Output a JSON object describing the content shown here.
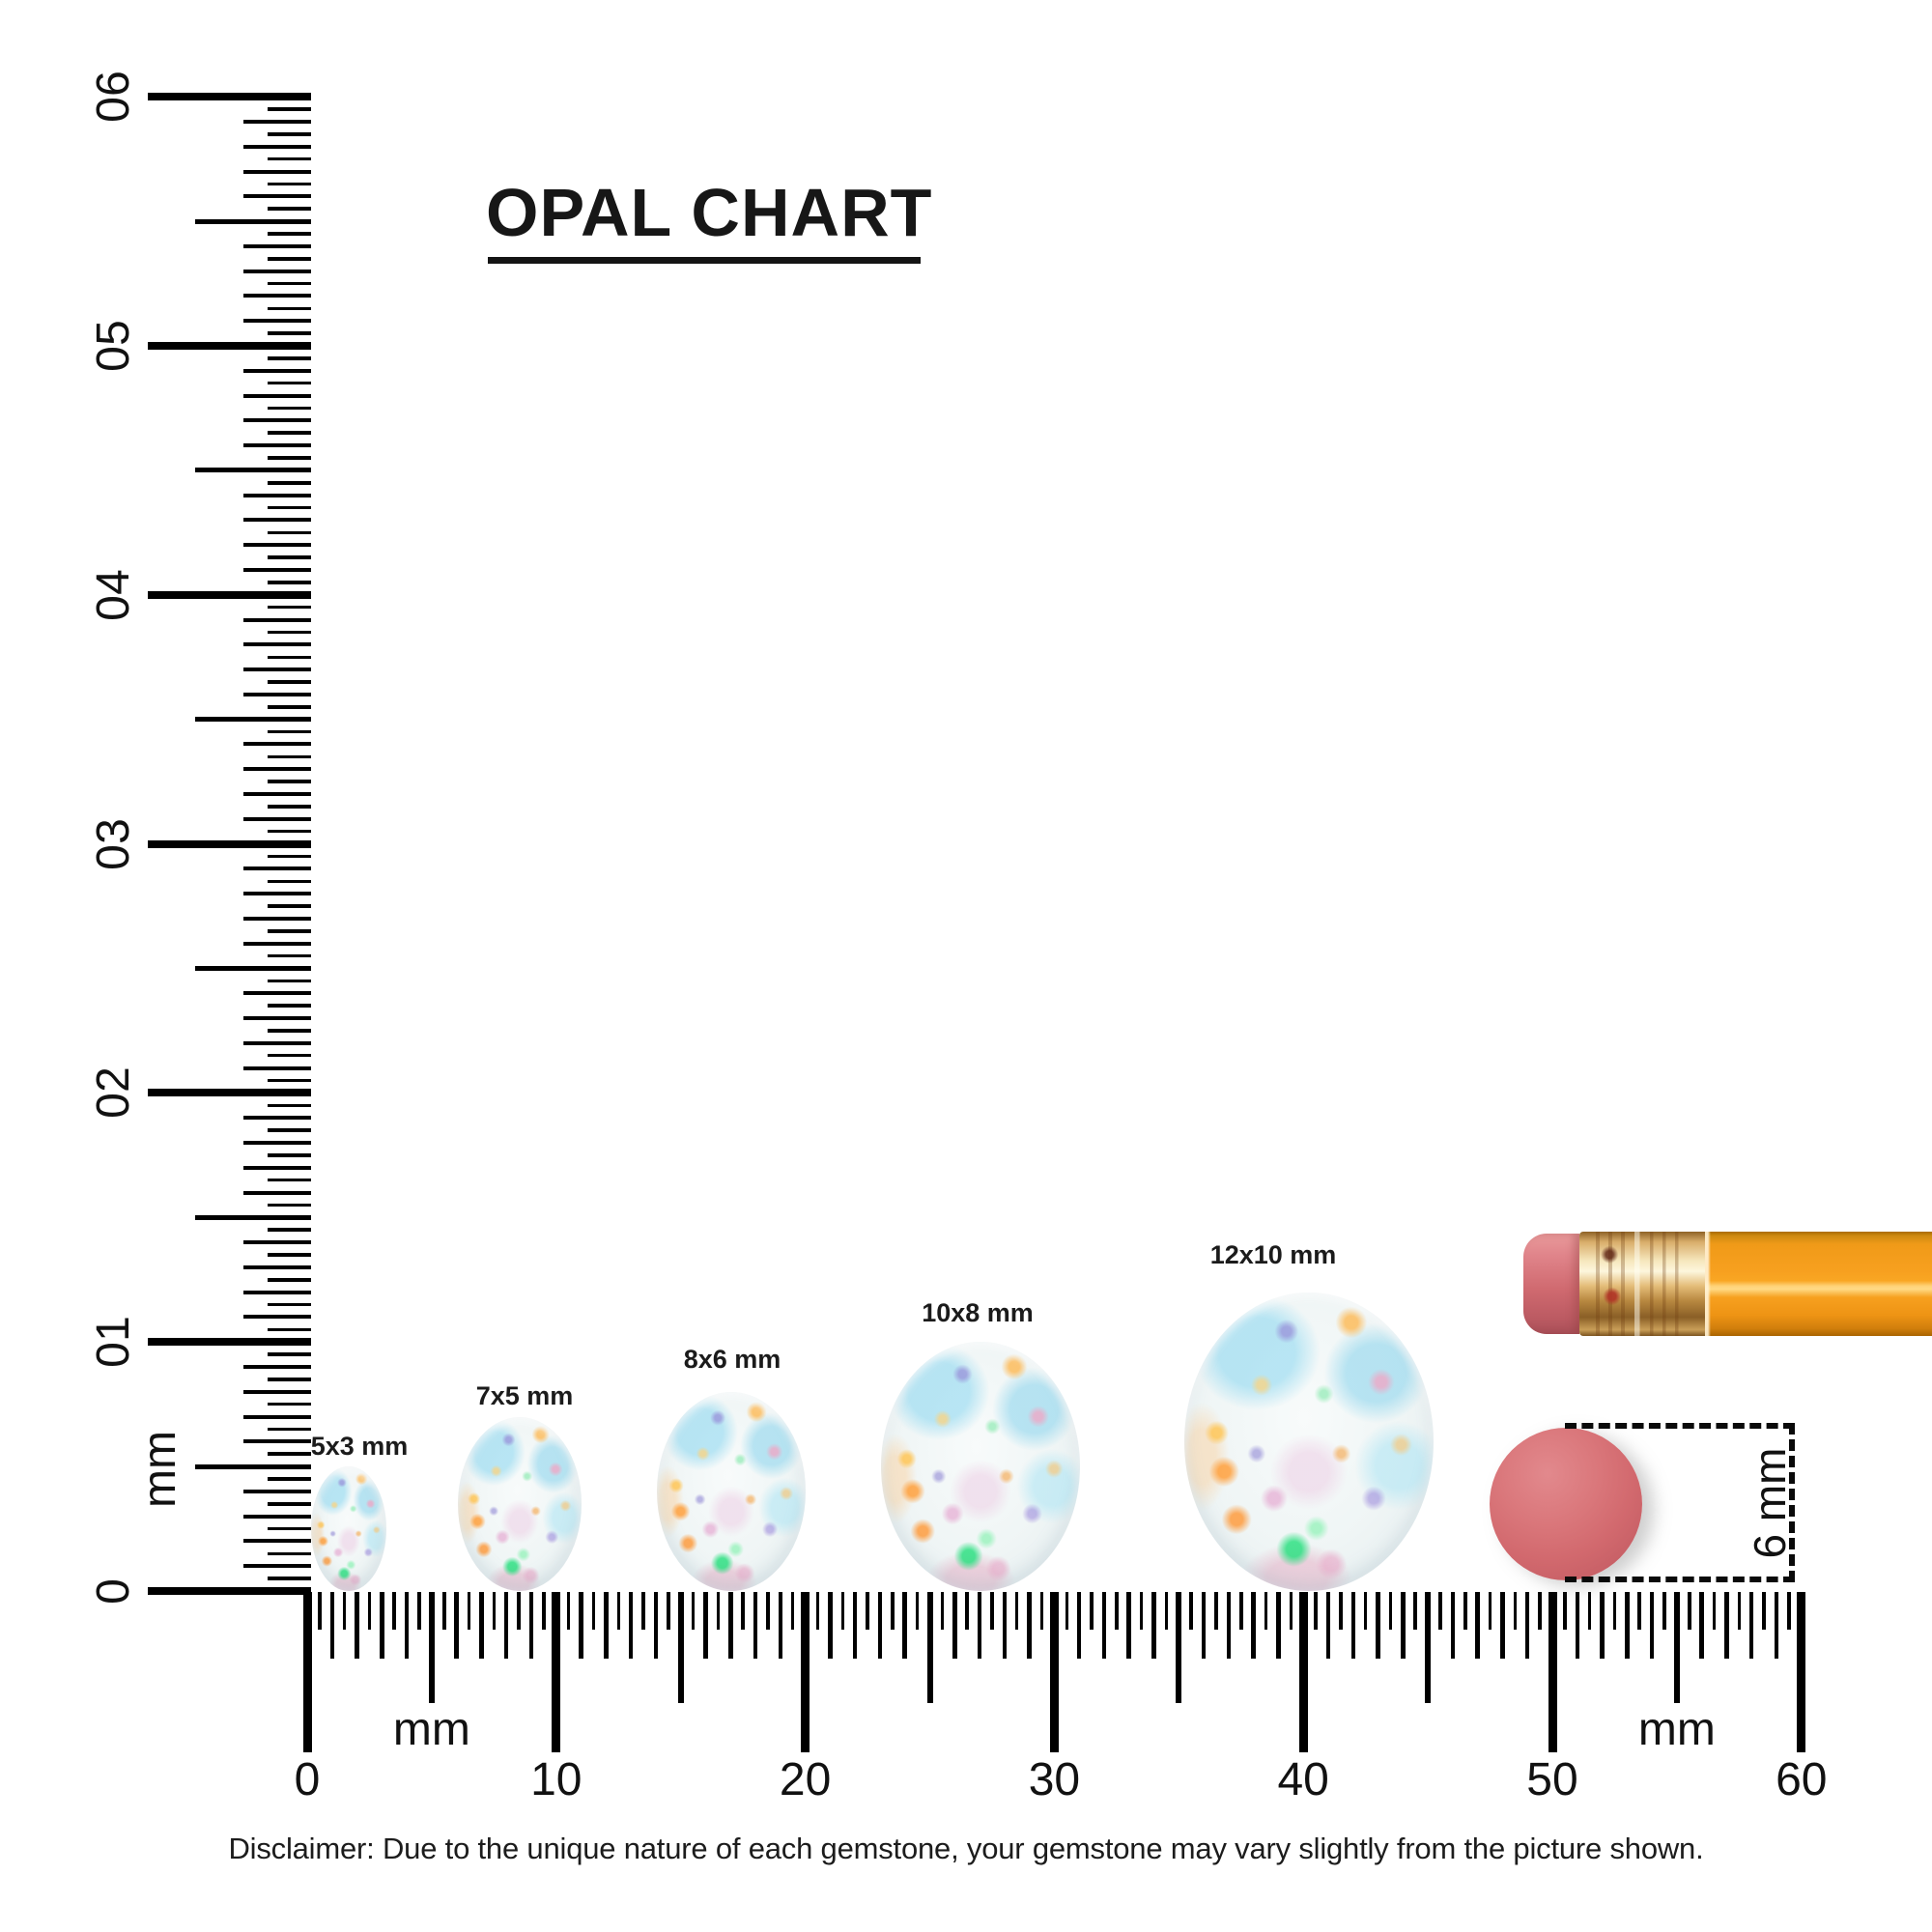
{
  "title": {
    "text": "OPAL CHART"
  },
  "rulers": {
    "vertical": {
      "unit": "mm",
      "min_mm": 0,
      "max_mm": 60,
      "tick_step_mm": 0.5,
      "labels": [
        {
          "mm": 0,
          "text": "0"
        },
        {
          "mm": 10,
          "text": "10"
        },
        {
          "mm": 20,
          "text": "20"
        },
        {
          "mm": 30,
          "text": "30"
        },
        {
          "mm": 40,
          "text": "40"
        },
        {
          "mm": 50,
          "text": "50"
        },
        {
          "mm": 60,
          "text": "60"
        }
      ]
    },
    "horizontal": {
      "unit_left": "mm",
      "unit_right": "mm",
      "min_mm": 0,
      "max_mm": 60,
      "tick_step_mm": 0.5,
      "labels": [
        {
          "mm": 0,
          "text": "0"
        },
        {
          "mm": 10,
          "text": "10"
        },
        {
          "mm": 20,
          "text": "20"
        },
        {
          "mm": 30,
          "text": "30"
        },
        {
          "mm": 40,
          "text": "40"
        },
        {
          "mm": 50,
          "text": "50"
        },
        {
          "mm": 60,
          "text": "60"
        }
      ]
    }
  },
  "opals": [
    {
      "label": "5x3 mm",
      "height_mm": 5,
      "width_mm": 3
    },
    {
      "label": "7x5 mm",
      "height_mm": 7,
      "width_mm": 5
    },
    {
      "label": "8x6 mm",
      "height_mm": 8,
      "width_mm": 6
    },
    {
      "label": "10x8 mm",
      "height_mm": 10,
      "width_mm": 8
    },
    {
      "label": "12x10 mm",
      "height_mm": 12,
      "width_mm": 10
    }
  ],
  "measurement": {
    "label": "6 mm",
    "object": "pencil eraser circle"
  },
  "disclaimer": {
    "text": "Disclaimer: Due to the unique nature of each gemstone, your gemstone may vary slightly from the picture shown."
  },
  "colors": {
    "ink": "#141414",
    "tick": "#000000",
    "opal_base": "#eef4f5",
    "opal_cyan": "#a8e0f2",
    "opal_orange": "#ffaa45",
    "opal_green": "#2ee082",
    "opal_pink": "#e59ec6",
    "opal_violet": "#9b8fd8",
    "pencil_eraser": "#d06a70",
    "pencil_ferrule": "#e4bd79",
    "pencil_body": "#f7a01f",
    "eraser_circle": "#d2696e"
  }
}
